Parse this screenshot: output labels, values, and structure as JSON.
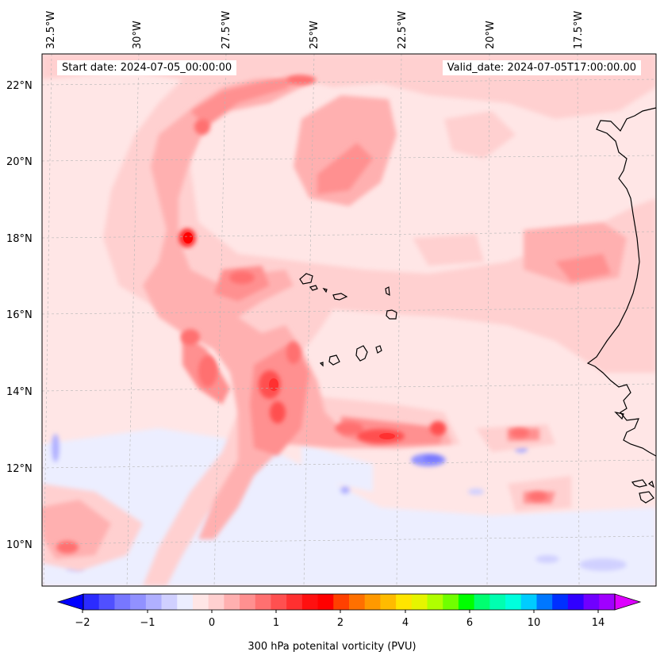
{
  "header": {
    "start_date": "Start date: 2024-07-05_00:00:00",
    "valid_date": "Valid_date: 2024-07-05T17:00:00.00"
  },
  "longitude_labels": [
    "32.5°W",
    "30°W",
    "27.5°W",
    "25°W",
    "22.5°W",
    "20°W",
    "17.5°W"
  ],
  "latitude_labels": [
    "22°N",
    "20°N",
    "18°N",
    "16°N",
    "14°N",
    "12°N",
    "10°N"
  ],
  "colorbar": {
    "title": "300 hPa potenital vorticity (PVU)",
    "tick_labels": [
      "−2",
      "−1",
      "0",
      "1",
      "2",
      "4",
      "6",
      "10",
      "14"
    ],
    "colors": [
      "#0000ff",
      "#2b2bff",
      "#5050ff",
      "#7777ff",
      "#9191ff",
      "#b0b0ff",
      "#d0d0ff",
      "#eceeff",
      "#ffe6e6",
      "#ffd0d0",
      "#ffb0b0",
      "#ff9090",
      "#ff7070",
      "#ff5050",
      "#ff3030",
      "#ff1010",
      "#ff0000",
      "#ff4000",
      "#ff7000",
      "#ff9900",
      "#ffbb00",
      "#ffe500",
      "#e6f500",
      "#b0ff00",
      "#70ff00",
      "#00ff00",
      "#00ff70",
      "#00ffb0",
      "#00ffdd",
      "#00ccff",
      "#0077ff",
      "#0030ff",
      "#3000ff",
      "#7000ff",
      "#a000ff",
      "#dd00ff"
    ]
  }
}
